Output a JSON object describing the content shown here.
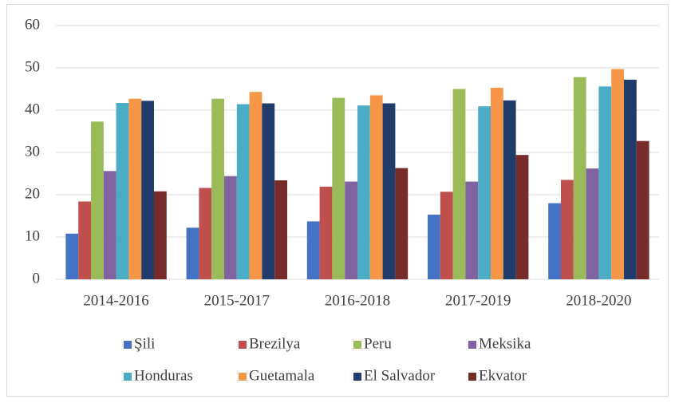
{
  "chart_data": {
    "type": "bar",
    "categories": [
      "2014-2016",
      "2015-2017",
      "2016-2018",
      "2017-2019",
      "2018-2020"
    ],
    "series": [
      {
        "name": "Şili",
        "color": "#4472c4",
        "values": [
          10.8,
          12.2,
          13.7,
          15.3,
          18.0
        ]
      },
      {
        "name": "Brezilya",
        "color": "#c0504d",
        "values": [
          18.4,
          21.6,
          21.9,
          20.7,
          23.5
        ]
      },
      {
        "name": "Peru",
        "color": "#9bbb59",
        "values": [
          37.3,
          42.7,
          42.9,
          45.0,
          47.8
        ]
      },
      {
        "name": "Meksika",
        "color": "#8064a2",
        "values": [
          25.6,
          24.4,
          23.1,
          23.1,
          26.2
        ]
      },
      {
        "name": "Honduras",
        "color": "#4bacc6",
        "values": [
          41.7,
          41.4,
          41.1,
          40.9,
          45.6
        ]
      },
      {
        "name": "Guetamala",
        "color": "#f79646",
        "values": [
          42.7,
          44.3,
          43.5,
          45.3,
          49.7
        ]
      },
      {
        "name": "El Salvador",
        "color": "#1f3c6b",
        "values": [
          42.2,
          41.6,
          41.6,
          42.3,
          47.2
        ]
      },
      {
        "name": "Ekvator",
        "color": "#772c2a",
        "values": [
          20.8,
          23.4,
          26.3,
          29.4,
          32.7
        ]
      }
    ],
    "ylim": [
      0,
      60
    ],
    "yticks": [
      0,
      10,
      20,
      30,
      40,
      50,
      60
    ],
    "grid": true,
    "legend": "bottom"
  }
}
